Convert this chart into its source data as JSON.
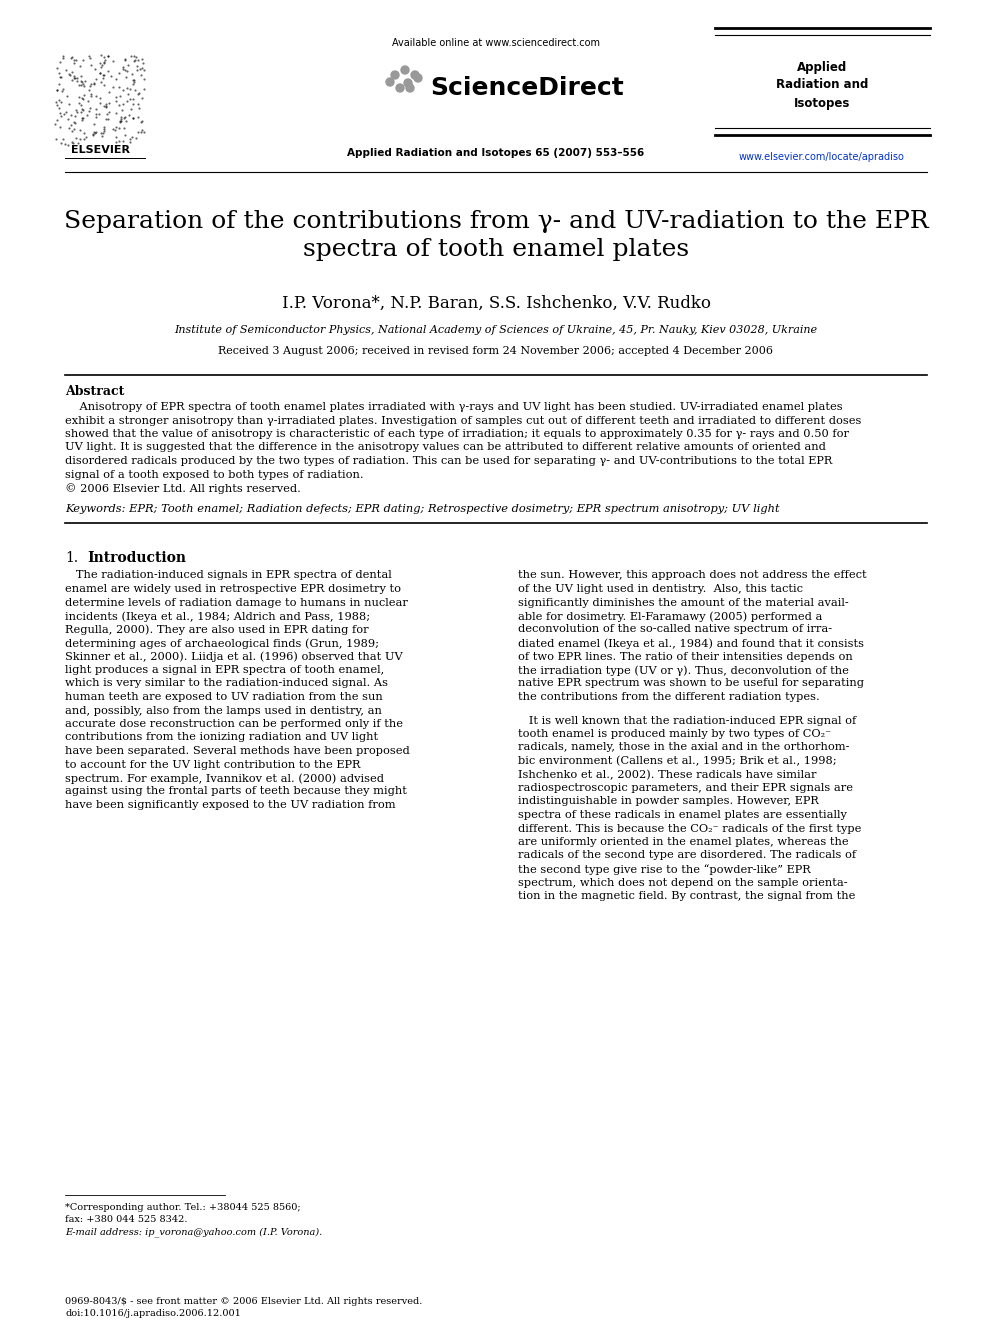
{
  "bg_color": "#ffffff",
  "page_width": 9.92,
  "page_height": 13.23,
  "header": {
    "available_online": "Available online at www.sciencedirect.com",
    "journal_name": "Applied\nRadiation and\nIsotopes",
    "journal_ref": "Applied Radiation and Isotopes 65 (2007) 553–556",
    "url": "www.elsevier.com/locate/apradiso",
    "elsevier_label": "ELSEVIER"
  },
  "title": "Separation of the contributions from γ- and UV-radiation to the EPR\nspectra of tooth enamel plates",
  "authors": "I.P. Vorona*, N.P. Baran, S.S. Ishchenko, V.V. Rudko",
  "affiliation": "Institute of Semiconductor Physics, National Academy of Sciences of Ukraine, 45, Pr. Nauky, Kiev 03028, Ukraine",
  "received": "Received 3 August 2006; received in revised form 24 November 2006; accepted 4 December 2006",
  "abstract_title": "Abstract",
  "keywords_text": "Keywords: EPR; Tooth enamel; Radiation defects; EPR dating; Retrospective dosimetry; EPR spectrum anisotropy; UV light",
  "section1_num": "1.",
  "section1_name": "Introduction",
  "footnote1": "*Corresponding author. Tel.: +38044 525 8560;",
  "footnote2": "fax: +380 044 525 8342.",
  "footnote3": "E-mail address: ip_vorona@yahoo.com (I.P. Vorona).",
  "footer1": "0969-8043/$ - see front matter © 2006 Elsevier Ltd. All rights reserved.",
  "footer2": "doi:10.1016/j.apradiso.2006.12.001"
}
